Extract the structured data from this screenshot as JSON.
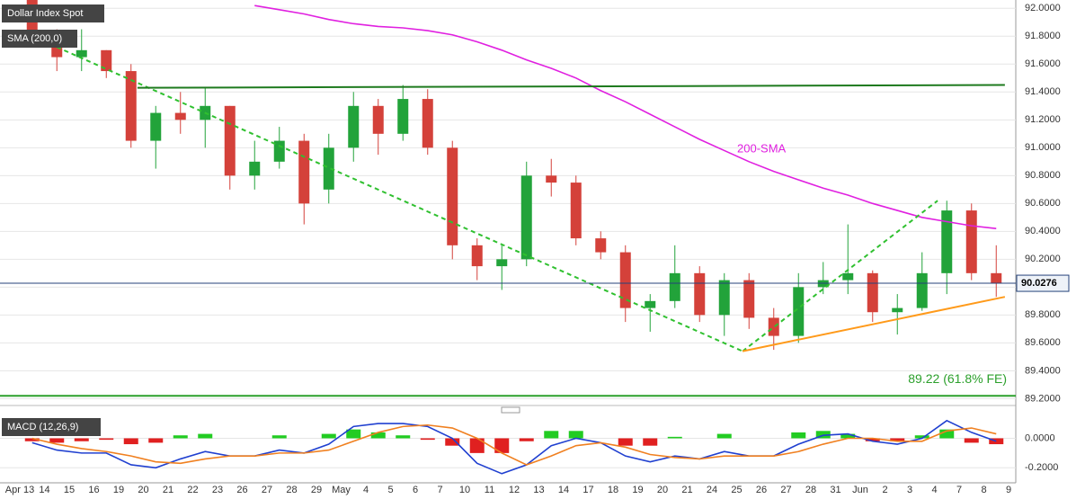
{
  "chart_data": [
    {
      "type": "candlestick",
      "title": "Dollar Index Spot",
      "legend": "SMA (200,0)",
      "categories": [
        "Apr 13",
        "14",
        "15",
        "16",
        "19",
        "20",
        "21",
        "22",
        "23",
        "26",
        "27",
        "28",
        "29",
        "May",
        "4",
        "5",
        "6",
        "7",
        "10",
        "11",
        "12",
        "13",
        "14",
        "17",
        "18",
        "19",
        "20",
        "21",
        "24",
        "25",
        "26",
        "27",
        "28",
        "31",
        "Jun",
        "2",
        "3",
        "4",
        "7",
        "8",
        "9"
      ],
      "open": [
        92.1,
        91.8,
        91.65,
        91.7,
        91.55,
        91.05,
        91.25,
        91.2,
        91.3,
        90.8,
        90.9,
        91.05,
        90.7,
        91.0,
        91.3,
        91.1,
        91.35,
        91.0,
        90.3,
        90.15,
        90.2,
        90.8,
        90.75,
        90.35,
        90.25,
        89.85,
        89.9,
        90.1,
        89.8,
        90.05,
        89.78,
        89.65,
        90.0,
        90.05,
        90.1,
        89.82,
        89.85,
        90.1,
        90.55,
        90.1,
        null
      ],
      "high": [
        92.15,
        91.85,
        91.85,
        91.7,
        91.6,
        91.3,
        91.4,
        91.43,
        91.3,
        91.05,
        91.15,
        91.1,
        91.1,
        91.4,
        91.35,
        91.45,
        91.42,
        91.05,
        90.35,
        90.3,
        90.9,
        90.92,
        90.8,
        90.4,
        90.3,
        89.95,
        90.3,
        90.15,
        90.1,
        90.1,
        89.85,
        90.1,
        90.18,
        90.45,
        90.12,
        89.95,
        90.25,
        90.62,
        90.6,
        90.3,
        null
      ],
      "low": [
        91.75,
        91.55,
        91.55,
        91.5,
        91.0,
        90.85,
        91.1,
        91.0,
        90.7,
        90.7,
        90.85,
        90.45,
        90.6,
        90.9,
        90.95,
        91.05,
        90.95,
        90.2,
        90.05,
        89.98,
        90.15,
        90.65,
        90.3,
        90.2,
        89.75,
        89.68,
        89.85,
        89.75,
        89.65,
        89.7,
        89.55,
        89.6,
        89.95,
        89.95,
        89.75,
        89.66,
        89.83,
        89.95,
        90.05,
        89.93,
        null
      ],
      "close": [
        91.8,
        91.65,
        91.7,
        91.55,
        91.05,
        91.25,
        91.2,
        91.3,
        90.8,
        90.9,
        91.05,
        90.6,
        91.0,
        91.3,
        91.1,
        91.35,
        91.0,
        90.3,
        90.15,
        90.2,
        90.8,
        90.75,
        90.35,
        90.25,
        89.85,
        89.9,
        90.1,
        89.8,
        90.05,
        89.78,
        89.65,
        90.0,
        90.05,
        90.1,
        89.82,
        89.85,
        90.1,
        90.55,
        90.1,
        90.03,
        null
      ],
      "up_color": "#22a33a",
      "down_color": "#d4413a",
      "sma": {
        "name": "200-SMA",
        "color": "#e020e0",
        "values": [
          null,
          null,
          null,
          null,
          null,
          null,
          null,
          null,
          null,
          92.02,
          91.99,
          91.96,
          91.92,
          91.89,
          91.87,
          91.86,
          91.84,
          91.81,
          91.76,
          91.7,
          91.63,
          91.57,
          91.5,
          91.41,
          91.33,
          91.24,
          91.15,
          91.06,
          90.98,
          90.9,
          90.83,
          90.77,
          90.71,
          90.66,
          90.6,
          90.55,
          90.5,
          90.47,
          90.44,
          90.42,
          null
        ]
      },
      "trendlines": [
        {
          "color": "#2fc02f",
          "dash": true,
          "points": [
            [
              0,
              91.84
            ],
            [
              29.24,
              89.54
            ]
          ]
        },
        {
          "color": "#2fc02f",
          "dash": true,
          "points": [
            [
              29.24,
              89.54
            ],
            [
              37.13,
              90.62
            ]
          ]
        },
        {
          "color": "#1e7a1e",
          "dash": false,
          "points": [
            [
              4.76,
              91.43
            ],
            [
              39.85,
              91.45
            ]
          ]
        },
        {
          "color": "#ff9a1a",
          "dash": false,
          "points": [
            [
              29.24,
              89.54
            ],
            [
              39.85,
              89.93
            ]
          ]
        }
      ],
      "fe_level": 89.22,
      "fe_label": "89.22 (61.8% FE)",
      "fe_color": "#2ca02c",
      "last_price": 90.0276,
      "last_price_color": "#24427a",
      "ylim": [
        89.17,
        92.06
      ],
      "yticks": [
        {
          "value": 92.0,
          "label": "92.0000"
        },
        {
          "value": 91.8,
          "label": "91.8000"
        },
        {
          "value": 91.6,
          "label": "91.6000"
        },
        {
          "value": 91.4,
          "label": "91.4000"
        },
        {
          "value": 91.2,
          "label": "91.2000"
        },
        {
          "value": 91.0,
          "label": "91.0000"
        },
        {
          "value": 90.8,
          "label": "90.8000"
        },
        {
          "value": 90.6,
          "label": "90.6000"
        },
        {
          "value": 90.4,
          "label": "90.4000"
        },
        {
          "value": 90.2,
          "label": "90.2000"
        },
        {
          "value": 90.0,
          "label": "90.0000"
        },
        {
          "value": 89.8,
          "label": "89.8000"
        },
        {
          "value": 89.6,
          "label": "89.6000"
        },
        {
          "value": 89.4,
          "label": "89.4000"
        },
        {
          "value": 89.2,
          "label": "89.2000"
        }
      ],
      "grid": true
    },
    {
      "type": "macd",
      "title": "MACD (12,26,9)",
      "series": [
        {
          "name": "MACD",
          "color": "#2040d0",
          "values": [
            -0.03,
            -0.08,
            -0.1,
            -0.1,
            -0.18,
            -0.2,
            -0.14,
            -0.09,
            -0.12,
            -0.12,
            -0.08,
            -0.1,
            -0.04,
            0.08,
            0.1,
            0.1,
            0.08,
            0.0,
            -0.17,
            -0.24,
            -0.18,
            -0.05,
            0.0,
            -0.03,
            -0.12,
            -0.16,
            -0.12,
            -0.14,
            -0.09,
            -0.12,
            -0.12,
            -0.04,
            0.02,
            0.03,
            -0.02,
            -0.04,
            0.0,
            0.12,
            0.04,
            -0.02,
            null
          ]
        },
        {
          "name": "Signal",
          "color": "#f08020",
          "values": [
            0.0,
            -0.04,
            -0.07,
            -0.09,
            -0.12,
            -0.16,
            -0.17,
            -0.14,
            -0.12,
            -0.12,
            -0.1,
            -0.1,
            -0.08,
            -0.02,
            0.04,
            0.08,
            0.09,
            0.07,
            0.0,
            -0.1,
            -0.18,
            -0.12,
            -0.05,
            -0.03,
            -0.06,
            -0.11,
            -0.13,
            -0.14,
            -0.12,
            -0.12,
            -0.12,
            -0.09,
            -0.04,
            0.0,
            0.0,
            -0.02,
            -0.02,
            0.05,
            0.07,
            0.03,
            null
          ]
        }
      ],
      "histogram": [
        -0.02,
        -0.03,
        -0.02,
        -0.01,
        -0.04,
        -0.03,
        0.02,
        0.03,
        0.0,
        0.0,
        0.02,
        0.0,
        0.03,
        0.06,
        0.04,
        0.02,
        -0.01,
        -0.05,
        -0.1,
        -0.1,
        -0.02,
        0.05,
        0.05,
        0.0,
        -0.05,
        -0.05,
        0.01,
        0.0,
        0.03,
        0.0,
        0.0,
        0.04,
        0.05,
        0.03,
        -0.02,
        -0.02,
        0.02,
        0.06,
        -0.03,
        -0.04,
        null
      ],
      "pos_color": "#22cc22",
      "neg_color": "#e02020",
      "ylim": [
        -0.29,
        0.18
      ],
      "yticks": [
        {
          "value": 0,
          "label": "0.0000"
        },
        {
          "value": -0.2,
          "label": "-0.2000"
        }
      ]
    }
  ]
}
